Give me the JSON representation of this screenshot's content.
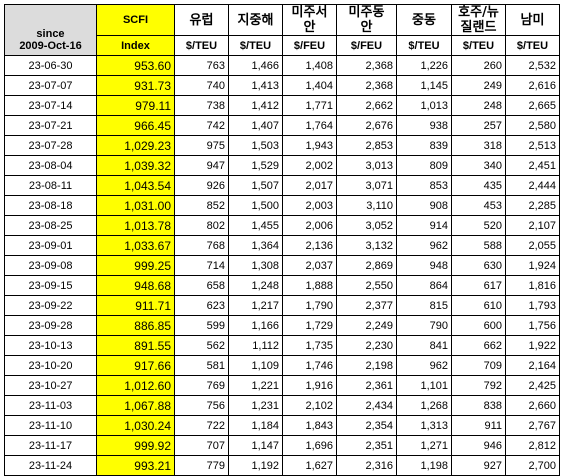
{
  "header": {
    "since_line1": "since",
    "since_line2": "2009-Oct-16",
    "scfi_label": "SCFI",
    "index_label": "Index",
    "routes": [
      "유럽",
      "지중해",
      "미주서안",
      "미주동안",
      "중동",
      "호주/뉴질랜드",
      "남미"
    ],
    "route_lines": [
      [
        "유럽"
      ],
      [
        "지중해"
      ],
      [
        "미주서",
        "안"
      ],
      [
        "미주동",
        "안"
      ],
      [
        "중동"
      ],
      [
        "호주/뉴",
        "질랜드"
      ],
      [
        "남미"
      ]
    ],
    "units": [
      "$/TEU",
      "$/TEU",
      "$/FEU",
      "$/FEU",
      "$/TEU",
      "$/TEU",
      "$/TEU"
    ]
  },
  "rows": [
    [
      "23-06-30",
      "953.60",
      "763",
      "1,466",
      "1,408",
      "2,368",
      "1,226",
      "260",
      "2,532"
    ],
    [
      "23-07-07",
      "931.73",
      "740",
      "1,413",
      "1,404",
      "2,368",
      "1,145",
      "249",
      "2,616"
    ],
    [
      "23-07-14",
      "979.11",
      "738",
      "1,412",
      "1,771",
      "2,662",
      "1,013",
      "248",
      "2,665"
    ],
    [
      "23-07-21",
      "966.45",
      "742",
      "1,407",
      "1,764",
      "2,676",
      "938",
      "257",
      "2,580"
    ],
    [
      "23-07-28",
      "1,029.23",
      "975",
      "1,503",
      "1,943",
      "2,853",
      "839",
      "318",
      "2,513"
    ],
    [
      "23-08-04",
      "1,039.32",
      "947",
      "1,529",
      "2,002",
      "3,013",
      "809",
      "340",
      "2,451"
    ],
    [
      "23-08-11",
      "1,043.54",
      "926",
      "1,507",
      "2,017",
      "3,071",
      "853",
      "435",
      "2,444"
    ],
    [
      "23-08-18",
      "1,031.00",
      "852",
      "1,500",
      "2,003",
      "3,110",
      "908",
      "453",
      "2,285"
    ],
    [
      "23-08-25",
      "1,013.78",
      "802",
      "1,455",
      "2,006",
      "3,052",
      "914",
      "520",
      "2,107"
    ],
    [
      "23-09-01",
      "1,033.67",
      "768",
      "1,364",
      "2,136",
      "3,132",
      "962",
      "588",
      "2,055"
    ],
    [
      "23-09-08",
      "999.25",
      "714",
      "1,308",
      "2,037",
      "2,869",
      "948",
      "630",
      "1,924"
    ],
    [
      "23-09-15",
      "948.68",
      "658",
      "1,248",
      "1,888",
      "2,550",
      "864",
      "617",
      "1,816"
    ],
    [
      "23-09-22",
      "911.71",
      "623",
      "1,217",
      "1,790",
      "2,377",
      "815",
      "610",
      "1,793"
    ],
    [
      "23-09-28",
      "886.85",
      "599",
      "1,166",
      "1,729",
      "2,249",
      "790",
      "600",
      "1,756"
    ],
    [
      "23-10-13",
      "891.55",
      "562",
      "1,112",
      "1,735",
      "2,230",
      "841",
      "662",
      "1,922"
    ],
    [
      "23-10-20",
      "917.66",
      "581",
      "1,109",
      "1,746",
      "2,198",
      "962",
      "709",
      "2,164"
    ],
    [
      "23-10-27",
      "1,012.60",
      "769",
      "1,221",
      "1,916",
      "2,361",
      "1,101",
      "792",
      "2,425"
    ],
    [
      "23-11-03",
      "1,067.88",
      "756",
      "1,231",
      "2,102",
      "2,434",
      "1,268",
      "838",
      "2,660"
    ],
    [
      "23-11-10",
      "1,030.24",
      "722",
      "1,184",
      "1,843",
      "2,354",
      "1,313",
      "911",
      "2,767"
    ],
    [
      "23-11-17",
      "999.92",
      "707",
      "1,147",
      "1,696",
      "2,351",
      "1,271",
      "946",
      "2,812"
    ],
    [
      "23-11-24",
      "993.21",
      "779",
      "1,192",
      "1,627",
      "2,316",
      "1,198",
      "927",
      "2,700"
    ]
  ]
}
